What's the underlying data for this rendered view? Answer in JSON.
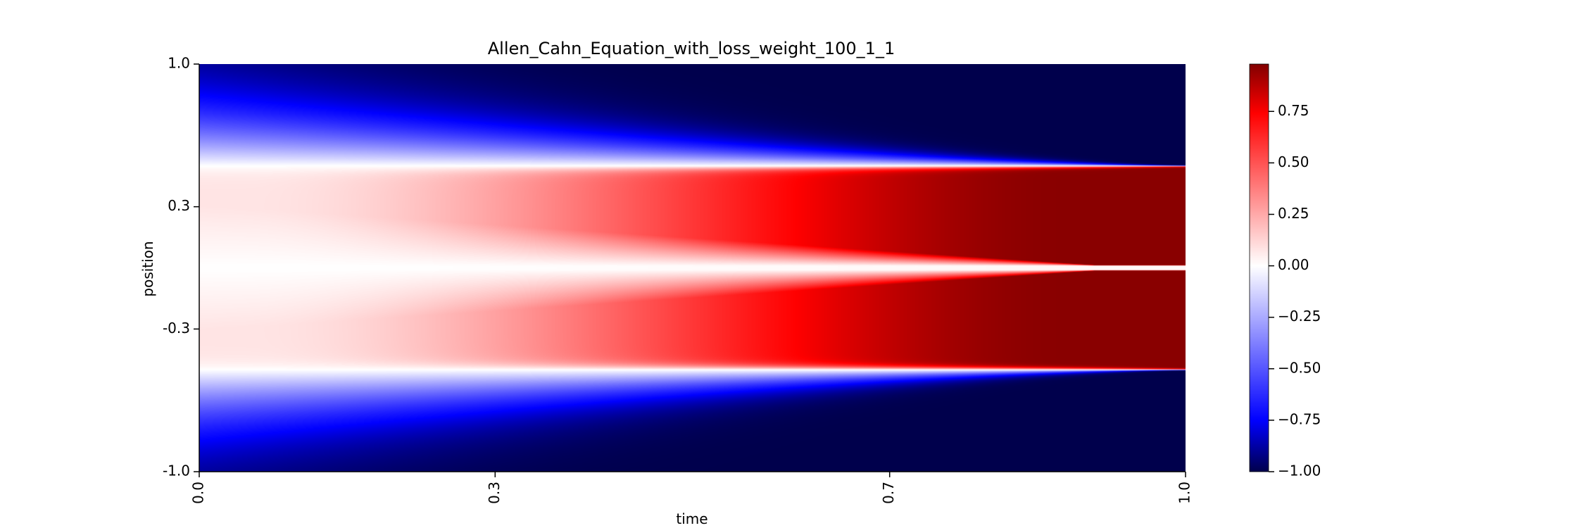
{
  "chart_data": {
    "type": "heatmap",
    "title": "Allen_Cahn_Equation_with_loss_weight_100_1_1",
    "xlabel": "time",
    "ylabel": "position",
    "x_range": [
      0.0,
      1.0
    ],
    "y_range": [
      -1.0,
      1.0
    ],
    "x_tick_labels": [
      "0.0",
      "0.3",
      "0.7",
      "1.0"
    ],
    "x_tick_values": [
      0.0,
      0.3,
      0.7,
      1.0
    ],
    "y_tick_labels": [
      "1.0",
      "0.3",
      "-0.3",
      "-1.0"
    ],
    "y_tick_values": [
      1.0,
      0.3,
      -0.3,
      -1.0
    ],
    "colormap": "seismic",
    "colormap_stops": [
      "#00004c",
      "#0000ff",
      "#ffffff",
      "#ff0000",
      "#7f0000"
    ],
    "color_range": [
      -1.0,
      0.98
    ],
    "colorbar_tick_labels": [
      "0.75",
      "0.50",
      "0.25",
      "0.00",
      "−0.25",
      "−0.50",
      "−0.75",
      "−1.00"
    ],
    "colorbar_tick_values": [
      0.75,
      0.5,
      0.25,
      0.0,
      -0.25,
      -0.5,
      -0.75,
      -1.0
    ],
    "grid": false,
    "description_of_field": {
      "interface_position_at_t0": 0.5,
      "interface_position_at_t1": 0.5,
      "outer_value_late": -1.0,
      "inner_value_late": 0.98
    }
  }
}
